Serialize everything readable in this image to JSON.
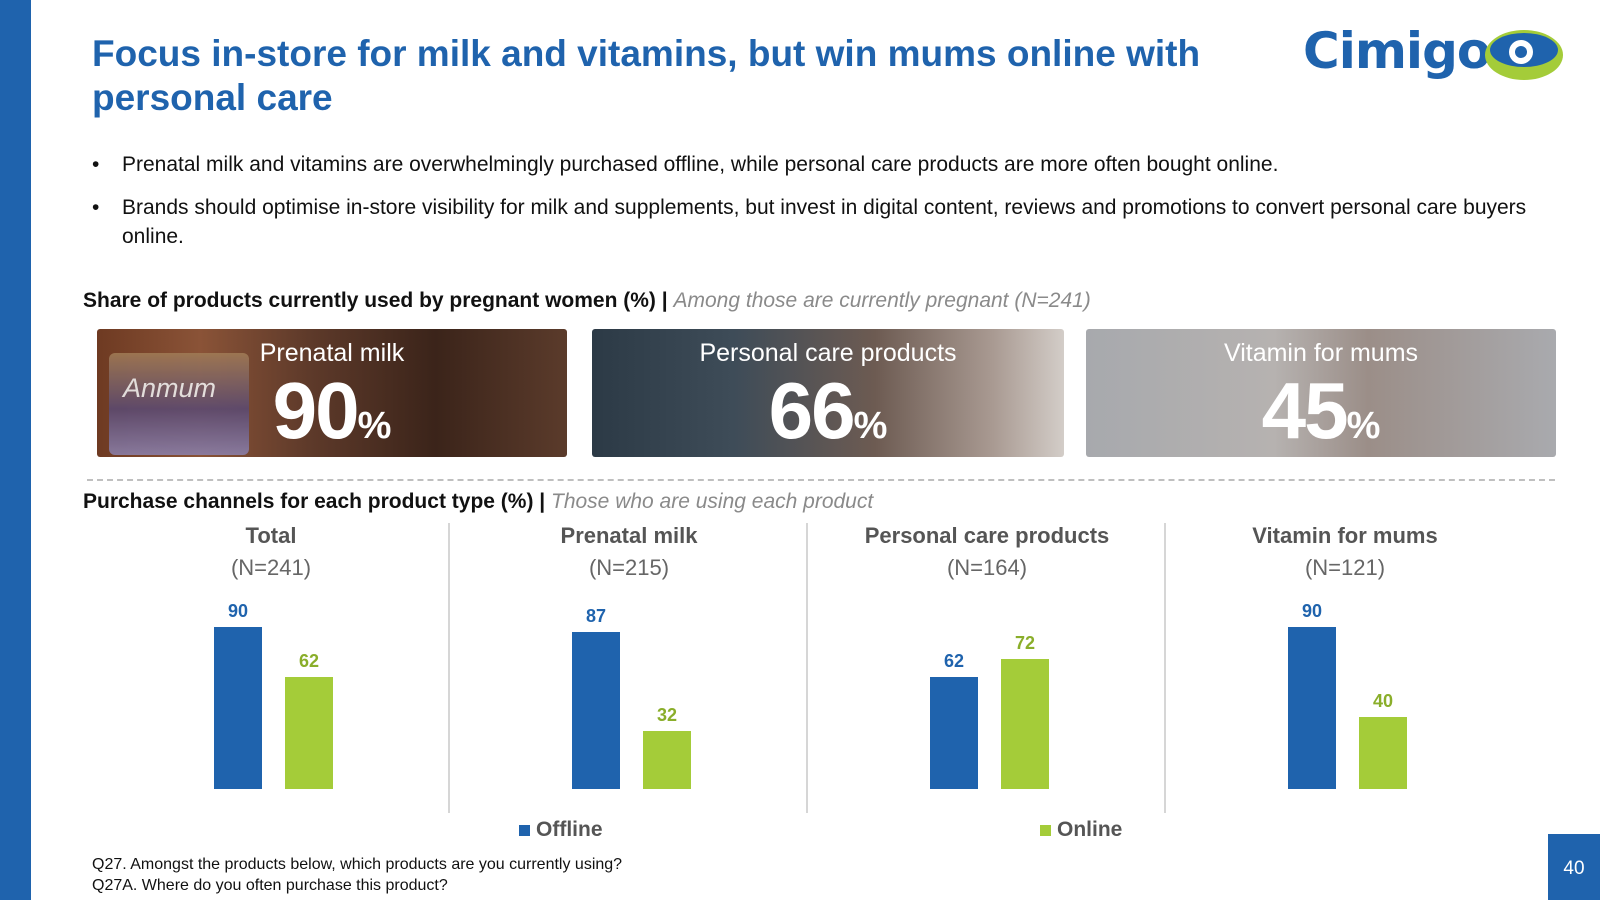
{
  "title": "Focus in-store for milk and vitamins, but win mums online with personal care",
  "logo": {
    "text": "Cimigo",
    "colors": {
      "blue": "#1f63ad",
      "green": "#a4cc39"
    }
  },
  "bullets": [
    "Prenatal milk and vitamins are overwhelmingly purchased offline, while personal care products are more often bought online.",
    "Brands should optimise in-store visibility for milk and supplements, but invest in digital content, reviews and promotions to convert personal care buyers online."
  ],
  "bullet_symbol": "•",
  "share_section": {
    "heading": "Share of products currently used by pregnant women (%) |",
    "subheading": "Among those are currently pregnant (N=241)",
    "cards": [
      {
        "label": "Prenatal milk",
        "value": "90",
        "unit": "%",
        "product_text": "Anmum"
      },
      {
        "label": "Personal care products",
        "value": "66",
        "unit": "%"
      },
      {
        "label": "Vitamin for mums",
        "value": "45",
        "unit": "%"
      }
    ]
  },
  "channel_section": {
    "heading": "Purchase channels for each product type (%) |",
    "subheading": "Those who are using each product"
  },
  "chart_data": {
    "type": "bar",
    "panels": [
      {
        "title": "Total",
        "n": "(N=241)",
        "offline": 90,
        "online": 62
      },
      {
        "title": "Prenatal milk",
        "n": "(N=215)",
        "offline": 87,
        "online": 32
      },
      {
        "title": "Personal care products",
        "n": "(N=164)",
        "offline": 62,
        "online": 72
      },
      {
        "title": "Vitamin for mums",
        "n": "(N=121)",
        "offline": 90,
        "online": 40
      }
    ],
    "series": [
      {
        "name": "Offline",
        "color": "#1f63ad"
      },
      {
        "name": "Online",
        "color": "#a4cc39"
      }
    ],
    "ylim": [
      0,
      100
    ],
    "legend": "bottom"
  },
  "footnotes": [
    "Q27. Amongst the products below, which products are you currently using?",
    "Q27A. Where do you often purchase this product?"
  ],
  "page_number": "40"
}
